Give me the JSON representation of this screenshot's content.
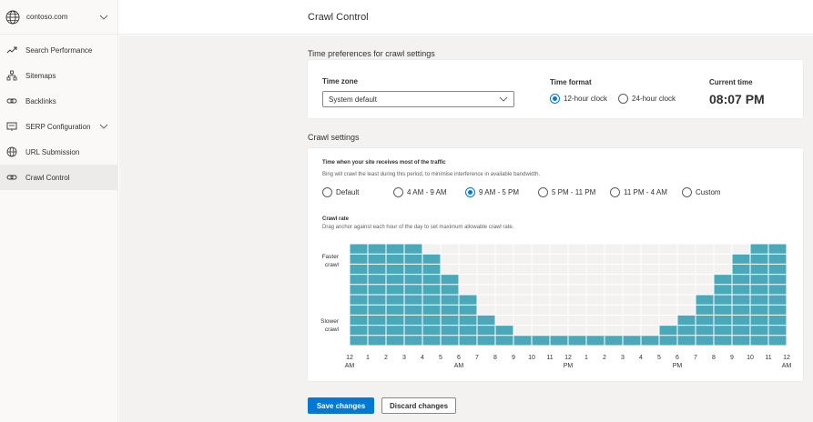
{
  "site": {
    "name": "contoso.com"
  },
  "sidebar": {
    "items": [
      {
        "label": "Search Performance",
        "icon": "trend-icon",
        "active": false
      },
      {
        "label": "Sitemaps",
        "icon": "sitemap-icon",
        "active": false
      },
      {
        "label": "Backlinks",
        "icon": "link-icon",
        "active": false
      },
      {
        "label": "SERP Configuration",
        "icon": "serp-icon",
        "active": false,
        "expandable": true
      },
      {
        "label": "URL Submission",
        "icon": "globe-icon",
        "active": false
      },
      {
        "label": "Crawl Control",
        "icon": "link-icon",
        "active": true
      }
    ]
  },
  "header": {
    "title": "Crawl Control"
  },
  "time_prefs": {
    "section_title": "Time preferences for crawl settings",
    "timezone_label": "Time zone",
    "timezone_value": "System default",
    "format_label": "Time format",
    "format_options": [
      {
        "label": "12-hour clock",
        "checked": true
      },
      {
        "label": "24-hour clock",
        "checked": false
      }
    ],
    "current_time_label": "Current time",
    "current_time_value": "08:07 PM"
  },
  "crawl": {
    "section_title": "Crawl settings",
    "traffic_label": "Time when your site receives most of the traffic",
    "traffic_help": "Bing will crawl the least during this period, to minimise interference in available bandwidth.",
    "traffic_options": [
      {
        "label": "Default",
        "checked": false
      },
      {
        "label": "4 AM - 9 AM",
        "checked": false
      },
      {
        "label": "9 AM - 5 PM",
        "checked": true
      },
      {
        "label": "5 PM - 11 PM",
        "checked": false
      },
      {
        "label": "11 PM - 4 AM",
        "checked": false
      },
      {
        "label": "Custom",
        "checked": false
      }
    ],
    "rate_label": "Crawl rate",
    "rate_help": "Drag anchor against each hour of the day to set maximum allowable crawl rate.",
    "faster_label": [
      "Faster",
      "crawl"
    ],
    "slower_label": [
      "Slower",
      "crawl"
    ]
  },
  "chart_data": {
    "type": "bar",
    "categories": [
      "12 AM",
      "1",
      "2",
      "3",
      "4",
      "5",
      "6 AM",
      "7",
      "8",
      "9",
      "10",
      "11",
      "12 PM",
      "1",
      "2",
      "3",
      "4",
      "5",
      "6 PM",
      "7",
      "8",
      "9",
      "10",
      "11"
    ],
    "x_tick_labels": [
      {
        "num": "12",
        "sub": "AM"
      },
      {
        "num": "1",
        "sub": ""
      },
      {
        "num": "2",
        "sub": ""
      },
      {
        "num": "3",
        "sub": ""
      },
      {
        "num": "4",
        "sub": ""
      },
      {
        "num": "5",
        "sub": ""
      },
      {
        "num": "6",
        "sub": "AM"
      },
      {
        "num": "7",
        "sub": ""
      },
      {
        "num": "8",
        "sub": ""
      },
      {
        "num": "9",
        "sub": ""
      },
      {
        "num": "10",
        "sub": ""
      },
      {
        "num": "11",
        "sub": ""
      },
      {
        "num": "12",
        "sub": "PM"
      },
      {
        "num": "1",
        "sub": ""
      },
      {
        "num": "2",
        "sub": ""
      },
      {
        "num": "3",
        "sub": ""
      },
      {
        "num": "4",
        "sub": ""
      },
      {
        "num": "5",
        "sub": ""
      },
      {
        "num": "6",
        "sub": "PM"
      },
      {
        "num": "7",
        "sub": ""
      },
      {
        "num": "8",
        "sub": ""
      },
      {
        "num": "9",
        "sub": ""
      },
      {
        "num": "10",
        "sub": ""
      },
      {
        "num": "11",
        "sub": ""
      },
      {
        "num": "12",
        "sub": "AM"
      }
    ],
    "values": [
      10,
      10,
      10,
      10,
      9,
      7,
      5,
      3,
      2,
      1,
      1,
      1,
      1,
      1,
      1,
      1,
      1,
      2,
      3,
      5,
      7,
      9,
      10,
      10
    ],
    "ylim": [
      0,
      10
    ],
    "bar_color": "#4aa8b9",
    "grid": true
  },
  "buttons": {
    "save": "Save changes",
    "discard": "Discard changes"
  },
  "colors": {
    "accent": "#0078d4",
    "bar": "#4aa8b9"
  }
}
